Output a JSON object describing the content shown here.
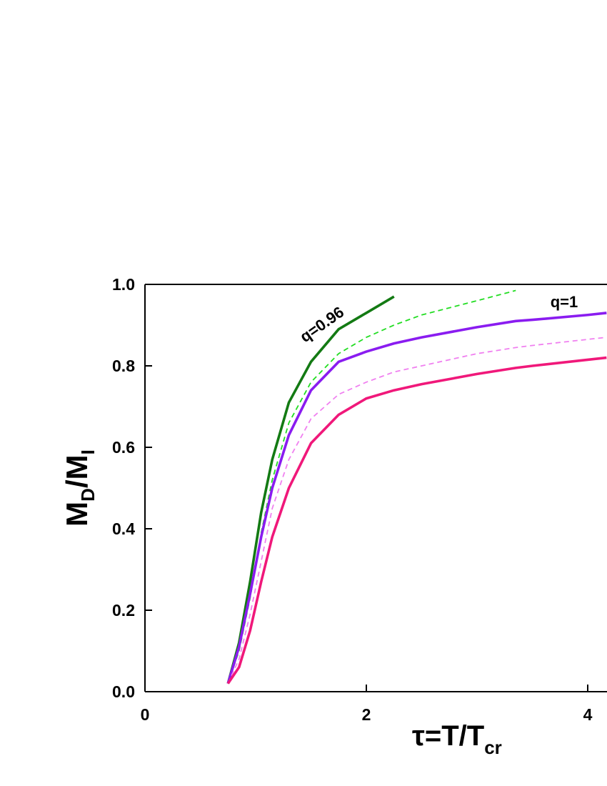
{
  "chart_data": {
    "type": "line",
    "ylabel": [
      "M",
      "D",
      "/M",
      "I"
    ],
    "xlabel": [
      "τ=T/T",
      "cr"
    ],
    "x": [
      0.75,
      0.85,
      0.95,
      1.05,
      1.15,
      1.3,
      1.5,
      1.75,
      2.0,
      2.25,
      2.5,
      3.0,
      3.35,
      3.5,
      4.0,
      4.17
    ],
    "series": [
      {
        "name": "q=0.96",
        "color": "#137a13",
        "dash": false,
        "values": [
          0.02,
          0.12,
          0.27,
          0.44,
          0.57,
          0.71,
          0.81,
          0.89,
          0.93,
          0.97,
          null,
          null,
          null,
          null,
          null,
          null
        ]
      },
      {
        "color": "#22dd22",
        "dash": true,
        "values": [
          0.02,
          0.1,
          0.23,
          0.39,
          0.52,
          0.66,
          0.76,
          0.83,
          0.87,
          0.9,
          0.925,
          0.96,
          0.985,
          null,
          null,
          null
        ]
      },
      {
        "name": "q=1",
        "color": "#8a1cf0",
        "dash": false,
        "values": [
          0.02,
          0.11,
          0.24,
          0.38,
          0.5,
          0.63,
          0.74,
          0.81,
          0.835,
          0.855,
          0.87,
          0.895,
          0.91,
          0.913,
          0.925,
          0.93
        ]
      },
      {
        "color": "#f080f0",
        "dash": true,
        "values": [
          0.02,
          0.08,
          0.19,
          0.32,
          0.45,
          0.57,
          0.67,
          0.73,
          0.76,
          0.785,
          0.8,
          0.83,
          0.845,
          0.85,
          0.865,
          0.87
        ]
      },
      {
        "color": "#f0187a",
        "dash": false,
        "values": [
          0.02,
          0.06,
          0.15,
          0.27,
          0.38,
          0.5,
          0.61,
          0.68,
          0.72,
          0.74,
          0.755,
          0.78,
          0.795,
          0.8,
          0.815,
          0.82
        ]
      }
    ],
    "xlim": [
      0,
      4.17
    ],
    "xticks": [
      0,
      2,
      4
    ],
    "ylim": [
      0,
      1.0
    ],
    "yticks": [
      {
        "value": 0,
        "label": "0.0"
      },
      0.2,
      0.4,
      0.6,
      0.8,
      {
        "value": 1.0,
        "label": "1.0"
      }
    ],
    "grid": false
  }
}
